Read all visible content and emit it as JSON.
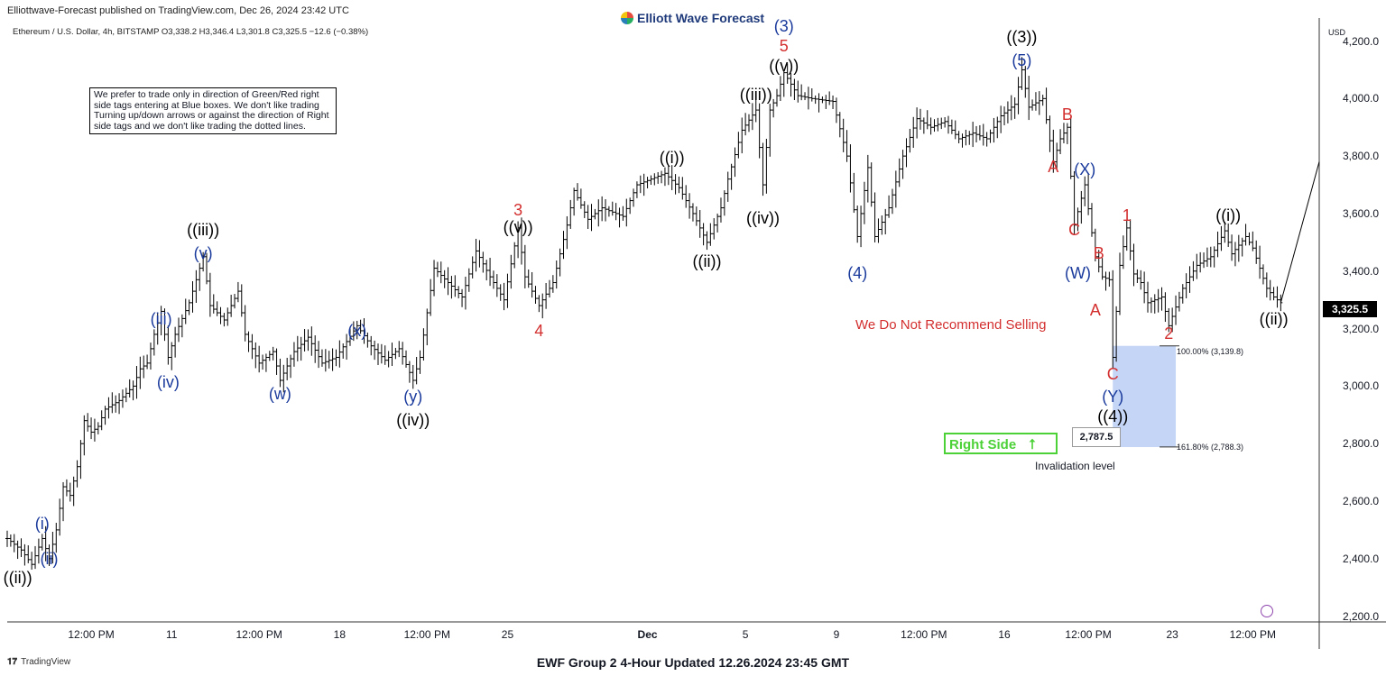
{
  "header": {
    "publisher": "Elliottwave-Forecast published on TradingView.com, Dec 26, 2024 23:42 UTC",
    "logo_text": "Elliott Wave Forecast",
    "symbol_line": "Ethereum / U.S. Dollar, 4h, BITSTAMP O3,338.2 H3,346.4 L3,301.8 C3,325.5 −12.6 (−0.38%)",
    "currency": "USD"
  },
  "note": "We prefer to trade only in direction of Green/Red right side tags entering at Blue boxes. We don't like trading Turning up/down arrows or against the direction of Right side tags and we don't like trading the dotted lines.",
  "annotations": {
    "no_sell": "We Do Not Recommend Selling",
    "right_side": "Right Side",
    "right_side_arrow": "⭡",
    "invalidation_value": "2,787.5",
    "invalidation_label": "Invalidation level",
    "fib_100": "100.00% (3,139.8)",
    "fib_161": "161.80% (2,788.3)",
    "last_price": "3,325.5"
  },
  "colors": {
    "wave_black": "#000000",
    "wave_blue": "#1a3a9c",
    "wave_red": "#d32f2f",
    "blue_box": "#c5d5f5",
    "right_side_green": "#4cd137"
  },
  "footer": {
    "title": "EWF Group 2 4-Hour Updated 12.26.2024 23:45 GMT",
    "brand": "TradingView"
  },
  "wave_labels": [
    {
      "text": "((ii))",
      "color": "black",
      "t": 3,
      "p": 2330
    },
    {
      "text": "(ii)",
      "color": "blue",
      "t": 12,
      "p": 2395
    },
    {
      "text": "(i)",
      "color": "blue",
      "t": 10,
      "p": 2520
    },
    {
      "text": "(iii)",
      "color": "blue",
      "t": 44,
      "p": 3230
    },
    {
      "text": "(iv)",
      "color": "blue",
      "t": 46,
      "p": 3010
    },
    {
      "text": "(v)",
      "color": "blue",
      "t": 56,
      "p": 3460
    },
    {
      "text": "((iii))",
      "color": "black",
      "t": 56,
      "p": 3540
    },
    {
      "text": "(w)",
      "color": "blue",
      "t": 78,
      "p": 2970
    },
    {
      "text": "(x)",
      "color": "blue",
      "t": 100,
      "p": 3190
    },
    {
      "text": "(y)",
      "color": "blue",
      "t": 116,
      "p": 2960
    },
    {
      "text": "((iv))",
      "color": "black",
      "t": 116,
      "p": 2880
    },
    {
      "text": "3",
      "color": "red",
      "t": 146,
      "p": 3610
    },
    {
      "text": "((v))",
      "color": "black",
      "t": 146,
      "p": 3550
    },
    {
      "text": "4",
      "color": "red",
      "t": 152,
      "p": 3190
    },
    {
      "text": "((i))",
      "color": "black",
      "t": 190,
      "p": 3790
    },
    {
      "text": "((ii))",
      "color": "black",
      "t": 200,
      "p": 3430
    },
    {
      "text": "((iii))",
      "color": "black",
      "t": 214,
      "p": 4010
    },
    {
      "text": "((iv))",
      "color": "black",
      "t": 216,
      "p": 3580
    },
    {
      "text": "(3)",
      "color": "blue",
      "t": 222,
      "p": 4250
    },
    {
      "text": "5",
      "color": "red",
      "t": 222,
      "p": 4180
    },
    {
      "text": "((v))",
      "color": "black",
      "t": 222,
      "p": 4110
    },
    {
      "text": "(4)",
      "color": "blue",
      "t": 243,
      "p": 3390
    },
    {
      "text": "((3))",
      "color": "black",
      "t": 290,
      "p": 4210
    },
    {
      "text": "(5)",
      "color": "blue",
      "t": 290,
      "p": 4130
    },
    {
      "text": "B",
      "color": "red",
      "t": 303,
      "p": 3940
    },
    {
      "text": "A",
      "color": "red",
      "t": 299,
      "p": 3760
    },
    {
      "text": "(X)",
      "color": "blue",
      "t": 308,
      "p": 3750
    },
    {
      "text": "C",
      "color": "red",
      "t": 305,
      "p": 3540
    },
    {
      "text": "(W)",
      "color": "blue",
      "t": 306,
      "p": 3390
    },
    {
      "text": "B",
      "color": "red",
      "t": 312,
      "p": 3460
    },
    {
      "text": "A",
      "color": "red",
      "t": 311,
      "p": 3260
    },
    {
      "text": "1",
      "color": "red",
      "t": 320,
      "p": 3590
    },
    {
      "text": "C",
      "color": "red",
      "t": 316,
      "p": 3040
    },
    {
      "text": "(Y)",
      "color": "blue",
      "t": 316,
      "p": 2960
    },
    {
      "text": "((4))",
      "color": "black",
      "t": 316,
      "p": 2890
    },
    {
      "text": "2",
      "color": "red",
      "t": 332,
      "p": 3180
    },
    {
      "text": "((i))",
      "color": "black",
      "t": 349,
      "p": 3590
    },
    {
      "text": "((ii))",
      "color": "black",
      "t": 362,
      "p": 3230
    }
  ],
  "chart_data": {
    "type": "candlestick",
    "title": "Ethereum / U.S. Dollar, 4h",
    "x_tick_labels": [
      "12:00 PM",
      "11",
      "12:00 PM",
      "18",
      "12:00 PM",
      "25",
      "Dec",
      "5",
      "9",
      "12:00 PM",
      "16",
      "12:00 PM",
      "23",
      "12:00 PM"
    ],
    "x_tick_index": [
      24,
      47,
      72,
      95,
      120,
      143,
      183,
      211,
      237,
      262,
      285,
      309,
      333,
      356
    ],
    "y_ticks": [
      2200,
      2400,
      2600,
      2800,
      3000,
      3200,
      3400,
      3600,
      3800,
      4000,
      4200
    ],
    "y_tick_labels": [
      "2,200.0",
      "2,400.0",
      "2,600.0",
      "2,800.0",
      "3,000.0",
      "3,200.0",
      "3,400.0",
      "3,600.0",
      "3,800.0",
      "4,000.0",
      "4,200.0"
    ],
    "ylim": [
      2180,
      4280
    ],
    "xlim": [
      0,
      375
    ],
    "price_path": [
      [
        0,
        2470
      ],
      [
        4,
        2430
      ],
      [
        7,
        2380
      ],
      [
        10,
        2470
      ],
      [
        12,
        2400
      ],
      [
        14,
        2500
      ],
      [
        16,
        2650
      ],
      [
        18,
        2620
      ],
      [
        20,
        2720
      ],
      [
        22,
        2880
      ],
      [
        24,
        2840
      ],
      [
        26,
        2860
      ],
      [
        28,
        2920
      ],
      [
        32,
        2950
      ],
      [
        36,
        3000
      ],
      [
        38,
        3060
      ],
      [
        40,
        3080
      ],
      [
        42,
        3180
      ],
      [
        44,
        3260
      ],
      [
        46,
        3100
      ],
      [
        48,
        3180
      ],
      [
        52,
        3290
      ],
      [
        56,
        3450
      ],
      [
        58,
        3280
      ],
      [
        62,
        3230
      ],
      [
        66,
        3330
      ],
      [
        68,
        3180
      ],
      [
        72,
        3080
      ],
      [
        76,
        3120
      ],
      [
        78,
        3020
      ],
      [
        82,
        3120
      ],
      [
        86,
        3170
      ],
      [
        90,
        3080
      ],
      [
        94,
        3100
      ],
      [
        100,
        3210
      ],
      [
        104,
        3140
      ],
      [
        108,
        3090
      ],
      [
        112,
        3130
      ],
      [
        116,
        3020
      ],
      [
        118,
        3100
      ],
      [
        122,
        3410
      ],
      [
        126,
        3360
      ],
      [
        130,
        3310
      ],
      [
        134,
        3470
      ],
      [
        138,
        3380
      ],
      [
        142,
        3300
      ],
      [
        146,
        3550
      ],
      [
        148,
        3380
      ],
      [
        152,
        3280
      ],
      [
        156,
        3360
      ],
      [
        160,
        3560
      ],
      [
        162,
        3680
      ],
      [
        166,
        3580
      ],
      [
        170,
        3620
      ],
      [
        176,
        3590
      ],
      [
        180,
        3700
      ],
      [
        184,
        3720
      ],
      [
        188,
        3740
      ],
      [
        192,
        3690
      ],
      [
        196,
        3600
      ],
      [
        200,
        3500
      ],
      [
        204,
        3620
      ],
      [
        206,
        3720
      ],
      [
        210,
        3890
      ],
      [
        214,
        3960
      ],
      [
        216,
        3700
      ],
      [
        218,
        3960
      ],
      [
        220,
        4010
      ],
      [
        222,
        4090
      ],
      [
        226,
        4010
      ],
      [
        230,
        4000
      ],
      [
        236,
        3990
      ],
      [
        240,
        3800
      ],
      [
        243,
        3520
      ],
      [
        246,
        3760
      ],
      [
        248,
        3520
      ],
      [
        252,
        3620
      ],
      [
        256,
        3800
      ],
      [
        260,
        3930
      ],
      [
        264,
        3900
      ],
      [
        268,
        3920
      ],
      [
        272,
        3860
      ],
      [
        276,
        3880
      ],
      [
        280,
        3860
      ],
      [
        284,
        3940
      ],
      [
        288,
        3980
      ],
      [
        290,
        4100
      ],
      [
        292,
        3970
      ],
      [
        296,
        4000
      ],
      [
        299,
        3780
      ],
      [
        301,
        3860
      ],
      [
        303,
        3900
      ],
      [
        305,
        3560
      ],
      [
        308,
        3700
      ],
      [
        311,
        3450
      ],
      [
        313,
        3380
      ],
      [
        315,
        3370
      ],
      [
        316,
        3100
      ],
      [
        318,
        3420
      ],
      [
        320,
        3550
      ],
      [
        322,
        3390
      ],
      [
        324,
        3360
      ],
      [
        326,
        3290
      ],
      [
        330,
        3310
      ],
      [
        332,
        3210
      ],
      [
        336,
        3340
      ],
      [
        340,
        3420
      ],
      [
        344,
        3450
      ],
      [
        348,
        3540
      ],
      [
        350,
        3460
      ],
      [
        354,
        3520
      ],
      [
        356,
        3480
      ],
      [
        360,
        3340
      ],
      [
        362,
        3310
      ],
      [
        364,
        3290
      ]
    ],
    "projection": [
      [
        364,
        3290
      ],
      [
        375,
        3780
      ]
    ],
    "blue_box": {
      "t0": 316,
      "t1": 334,
      "p_low": 2788,
      "p_high": 3140
    },
    "fib_levels": [
      3139.8,
      2788.3
    ]
  }
}
